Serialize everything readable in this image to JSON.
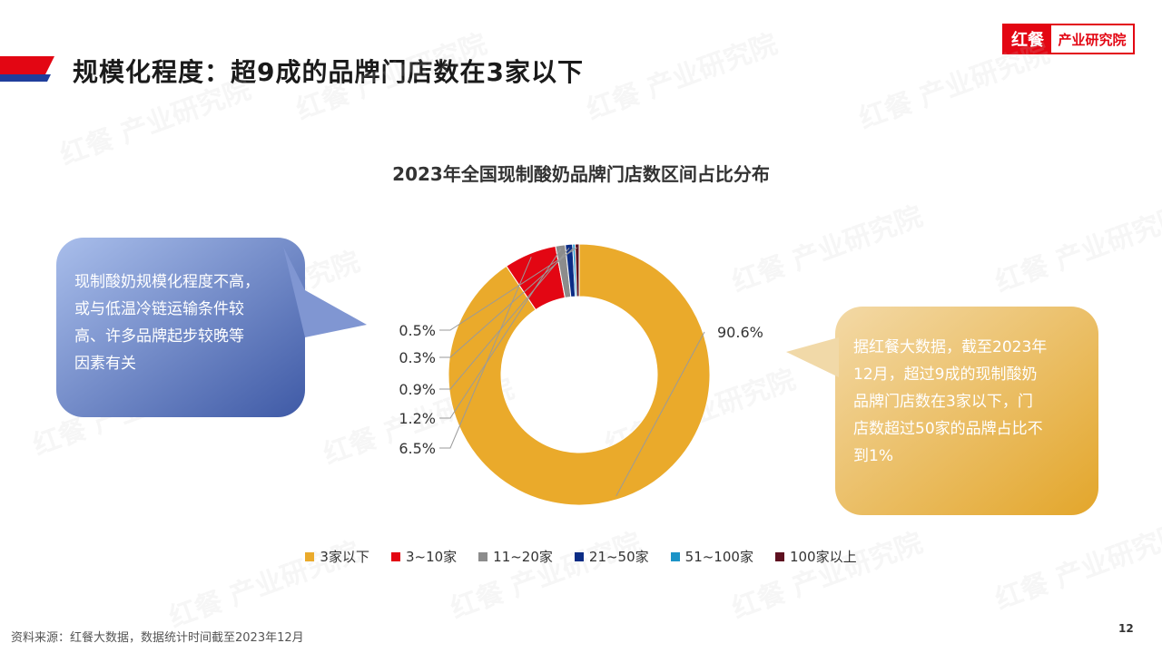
{
  "header": {
    "title": "规模化程度：超9成的品牌门店数在3家以下",
    "logo": {
      "mark": "红餐",
      "text": "产业研究院"
    }
  },
  "watermark": "红餐 产业研究院",
  "chart_data": {
    "type": "pie",
    "donut": true,
    "title": "2023年全国现制酸奶品牌门店数区间占比分布",
    "unit": "%",
    "categories": [
      "3家以下",
      "3~10家",
      "11~20家",
      "21~50家",
      "51~100家",
      "100家以上"
    ],
    "values": [
      90.6,
      6.5,
      1.2,
      0.9,
      0.3,
      0.5
    ],
    "data_labels": [
      "90.6%",
      "6.5%",
      "1.2%",
      "0.9%",
      "0.3%",
      "0.5%"
    ],
    "colors": [
      "#EAAA2B",
      "#E30613",
      "#8C8C8C",
      "#0B2C85",
      "#1C93C7",
      "#5E1020"
    ],
    "legend_position": "bottom"
  },
  "callouts": {
    "left": "现制酸奶规模化程度不高，\n或与低温冷链运输条件较\n高、许多品牌起步较晚等\n因素有关",
    "right": "据红餐大数据，截至2023年\n12月，超过9成的现制酸奶\n品牌门店数在3家以下，门\n店数超过50家的品牌占比不\n到1%"
  },
  "footer": {
    "source": "资料来源：红餐大数据，数据统计时间截至2023年12月",
    "page": "12"
  }
}
